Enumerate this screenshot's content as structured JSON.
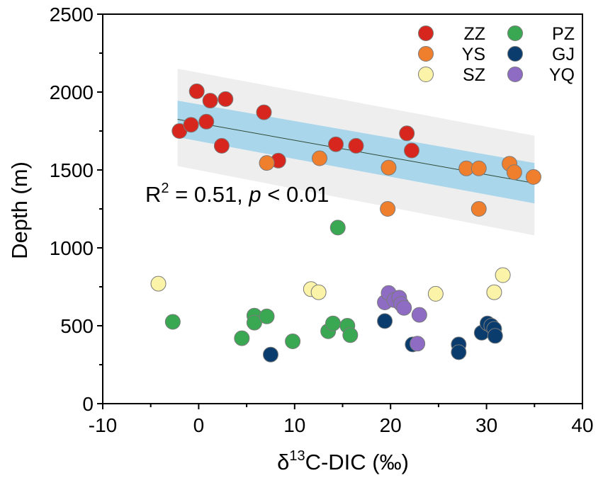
{
  "chart_data": {
    "type": "scatter",
    "xlabel": {
      "main": "δ",
      "sup": "13",
      "rest": "C-DIC (‰)"
    },
    "ylabel": "Depth (m)",
    "xlim": [
      -10,
      40
    ],
    "ylim": [
      0,
      2500
    ],
    "xticks": [
      "-10",
      "0",
      "10",
      "20",
      "30",
      "40"
    ],
    "yticks": [
      "0",
      "500",
      "1000",
      "1500",
      "2000",
      "2500"
    ],
    "xtick_values": [
      -10,
      0,
      10,
      20,
      30,
      40
    ],
    "ytick_values": [
      0,
      500,
      1000,
      1500,
      2000,
      2500
    ],
    "annotation": {
      "r": "R",
      "sup": "2",
      "eq": " = 0.51, ",
      "p": "p",
      "rest": " < 0.01"
    },
    "regression": {
      "x": [
        -2.2,
        35
      ],
      "y": [
        1825,
        1415
      ],
      "ci_inner_upper": [
        1945,
        1545
      ],
      "ci_inner_lower": [
        1710,
        1285
      ],
      "pi_upper": [
        2150,
        1720
      ],
      "pi_lower": [
        1525,
        1080
      ],
      "line_color": "#2e4a36",
      "ci_color": "#aad6ec",
      "pi_color": "#eeeeee"
    },
    "legend": [
      {
        "name": "ZZ",
        "color": "#d7261e"
      },
      {
        "name": "PZ",
        "color": "#3aa853"
      },
      {
        "name": "YS",
        "color": "#f07f2d"
      },
      {
        "name": "GJ",
        "color": "#0a3d6e"
      },
      {
        "name": "SZ",
        "color": "#fbf3a8"
      },
      {
        "name": "YQ",
        "color": "#8e6cc4"
      }
    ],
    "series": [
      {
        "name": "ZZ",
        "color": "#d7261e",
        "points": [
          [
            -2,
            1750
          ],
          [
            -0.8,
            1790
          ],
          [
            -0.2,
            2005
          ],
          [
            0.8,
            1810
          ],
          [
            1.2,
            1945
          ],
          [
            2.4,
            1655
          ],
          [
            2.8,
            1955
          ],
          [
            6.8,
            1870
          ],
          [
            8.3,
            1560
          ],
          [
            14.3,
            1665
          ],
          [
            16.4,
            1655
          ],
          [
            21.7,
            1735
          ],
          [
            22.2,
            1625
          ]
        ]
      },
      {
        "name": "YS",
        "color": "#f07f2d",
        "points": [
          [
            7.1,
            1545
          ],
          [
            12.6,
            1575
          ],
          [
            19.8,
            1515
          ],
          [
            19.7,
            1250
          ],
          [
            27.9,
            1510
          ],
          [
            29.2,
            1510
          ],
          [
            29.2,
            1250
          ],
          [
            32.4,
            1540
          ],
          [
            32.9,
            1485
          ],
          [
            34.9,
            1455
          ]
        ]
      },
      {
        "name": "SZ",
        "color": "#fbf3a8",
        "points": [
          [
            -4.2,
            770
          ],
          [
            11.7,
            735
          ],
          [
            12.5,
            715
          ],
          [
            24.7,
            705
          ],
          [
            30.8,
            715
          ],
          [
            31.7,
            825
          ]
        ]
      },
      {
        "name": "PZ",
        "color": "#3aa853",
        "points": [
          [
            -2.7,
            525
          ],
          [
            4.5,
            420
          ],
          [
            5.8,
            565
          ],
          [
            5.8,
            520
          ],
          [
            7.1,
            560
          ],
          [
            9.8,
            400
          ],
          [
            13.5,
            465
          ],
          [
            14,
            515
          ],
          [
            14.5,
            1130
          ],
          [
            15.5,
            500
          ],
          [
            15.8,
            440
          ]
        ]
      },
      {
        "name": "GJ",
        "color": "#0a3d6e",
        "points": [
          [
            7.5,
            315
          ],
          [
            19.4,
            530
          ],
          [
            22.3,
            380
          ],
          [
            27.1,
            380
          ],
          [
            27.1,
            330
          ],
          [
            29.5,
            455
          ],
          [
            30.1,
            515
          ],
          [
            30.5,
            500
          ],
          [
            30.8,
            480
          ],
          [
            30.9,
            435
          ]
        ]
      },
      {
        "name": "YQ",
        "color": "#8e6cc4",
        "points": [
          [
            19.4,
            650
          ],
          [
            19.8,
            710
          ],
          [
            20.4,
            665
          ],
          [
            20.9,
            680
          ],
          [
            21.1,
            640
          ],
          [
            21.4,
            615
          ],
          [
            22.8,
            385
          ],
          [
            23,
            570
          ]
        ]
      }
    ]
  }
}
